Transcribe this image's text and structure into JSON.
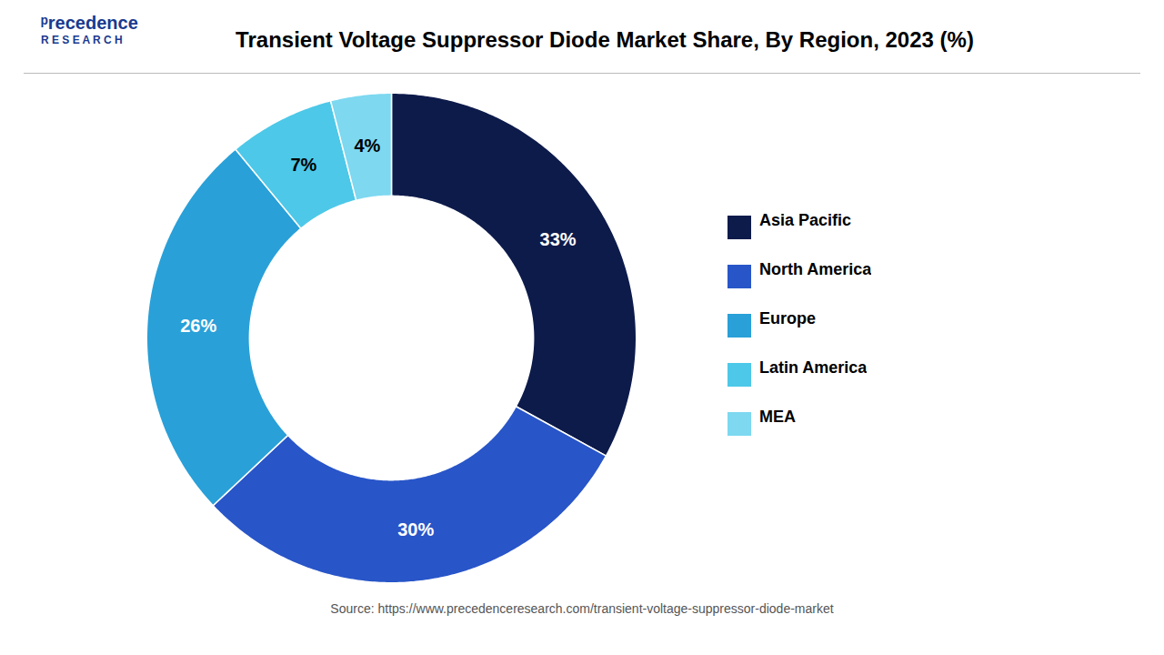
{
  "chart_data": {
    "type": "donut",
    "title": "Transient Voltage Suppressor Diode Market Share, By Region, 2023 (%)",
    "categories": [
      "Asia Pacific",
      "North America",
      "Europe",
      "Latin America",
      "MEA"
    ],
    "values": [
      33,
      30,
      26,
      7,
      4
    ],
    "value_labels": [
      "33%",
      "30%",
      "26%",
      "7%",
      "4%"
    ],
    "colors": [
      "#0d1b4b",
      "#2855c8",
      "#29a0d8",
      "#4dc8e8",
      "#7dd8f0"
    ],
    "data_labels": true,
    "legend": "right",
    "annotations": [
      "ᵖrecedence",
      "R E S E A R C H"
    ],
    "source": "Source: https://www.precedenceresearch.com/transient-voltage-suppressor-diode-market"
  }
}
